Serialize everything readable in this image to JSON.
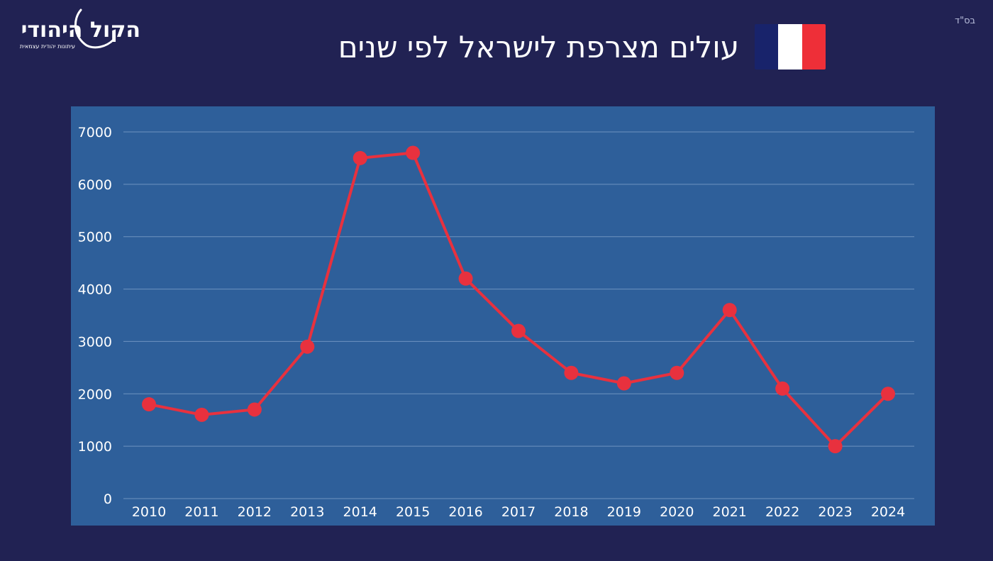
{
  "header": {
    "corner_mark": "בס\"ד",
    "title": "עולים מצרפת לישראל לפי שנים",
    "logo": {
      "name": "הקול היהודי",
      "tagline": "עיתונות יהודית עצמאית"
    },
    "flag": {
      "country": "France",
      "colors": [
        "#18236b",
        "#ffffff",
        "#ee2f38"
      ]
    }
  },
  "colors": {
    "background": "#212253",
    "panel": "#2e5f9a",
    "line": "#e8313e",
    "grid": "#6f93c0",
    "text": "#ffffff"
  },
  "chart_data": {
    "type": "line",
    "title": "עולים מצרפת לישראל לפי שנים",
    "xlabel": "",
    "ylabel": "",
    "categories": [
      "2010",
      "2011",
      "2012",
      "2013",
      "2014",
      "2015",
      "2016",
      "2017",
      "2018",
      "2019",
      "2020",
      "2021",
      "2022",
      "2023",
      "2024"
    ],
    "series": [
      {
        "values": [
          1800,
          1600,
          1700,
          2900,
          6500,
          6600,
          4200,
          3200,
          2400,
          2200,
          2400,
          3600,
          2100,
          1000,
          2000
        ]
      }
    ],
    "ylim": [
      0,
      7000
    ],
    "yticks": [
      0,
      1000,
      2000,
      3000,
      4000,
      5000,
      6000,
      7000
    ],
    "grid": true,
    "legend": "none",
    "markers": true
  }
}
